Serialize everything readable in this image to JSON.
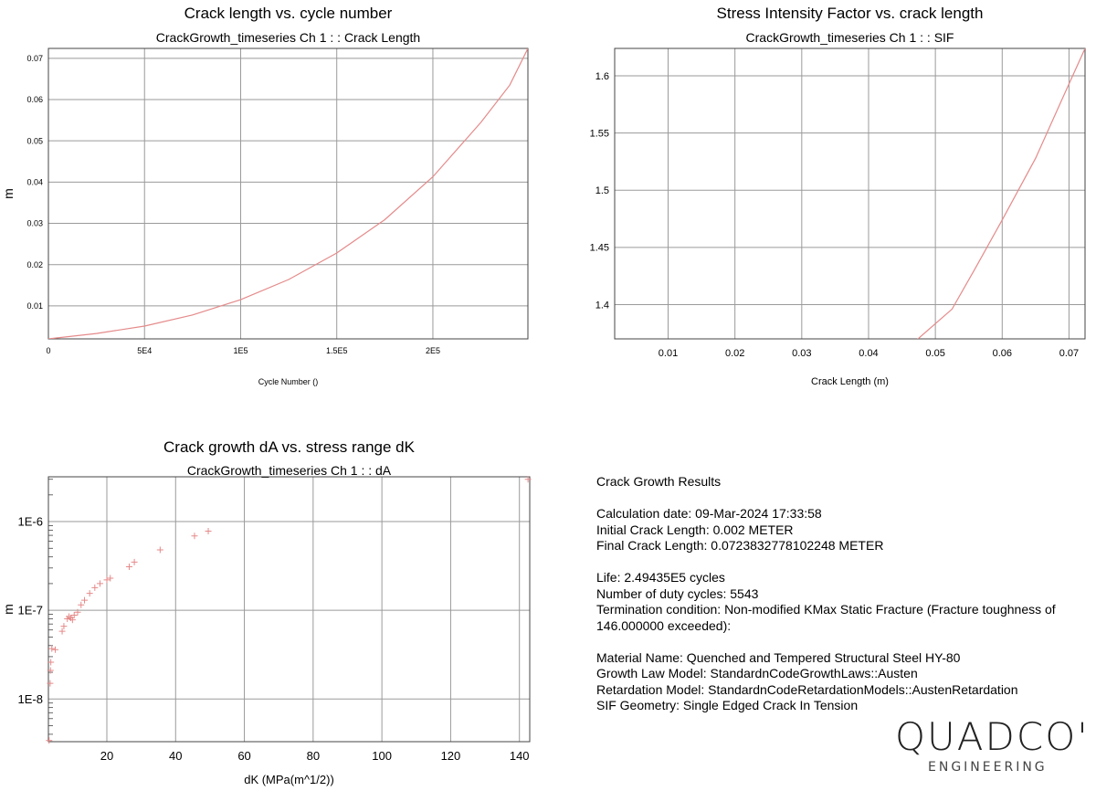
{
  "chart_data": [
    {
      "type": "line",
      "title": "Crack length vs. cycle number",
      "subtitle": "CrackGrowth_timeseries  Ch 1 :  : Crack Length",
      "xlabel": "Cycle Number ()",
      "ylabel": "m",
      "xlim": [
        0,
        249435
      ],
      "ylim": [
        0.002,
        0.0724
      ],
      "grid": true,
      "x_ticks": [
        {
          "v": 0,
          "label": "0"
        },
        {
          "v": 50000,
          "label": "5E4"
        },
        {
          "v": 100000,
          "label": "1E5"
        },
        {
          "v": 150000,
          "label": "1.5E5"
        },
        {
          "v": 200000,
          "label": "2E5"
        }
      ],
      "y_ticks": [
        {
          "v": 0.01,
          "label": "0.01"
        },
        {
          "v": 0.02,
          "label": "0.02"
        },
        {
          "v": 0.03,
          "label": "0.03"
        },
        {
          "v": 0.04,
          "label": "0.04"
        },
        {
          "v": 0.05,
          "label": "0.05"
        },
        {
          "v": 0.06,
          "label": "0.06"
        },
        {
          "v": 0.07,
          "label": "0.07"
        }
      ],
      "x": [
        0,
        25000,
        50000,
        75000,
        100000,
        125000,
        150000,
        175000,
        200000,
        225000,
        240000,
        249435
      ],
      "y": [
        0.002,
        0.0033,
        0.0051,
        0.0078,
        0.0115,
        0.0164,
        0.0228,
        0.0309,
        0.0413,
        0.0545,
        0.0635,
        0.0724
      ]
    },
    {
      "type": "line",
      "title": "Stress Intensity Factor vs. crack length",
      "subtitle": "CrackGrowth_timeseries  Ch 1 :  : SIF",
      "xlabel": "Crack Length (m)",
      "ylabel": "",
      "xlim": [
        0.002,
        0.0724
      ],
      "ylim": [
        1.37,
        1.624
      ],
      "grid": true,
      "x_ticks": [
        {
          "v": 0.01,
          "label": "0.01"
        },
        {
          "v": 0.02,
          "label": "0.02"
        },
        {
          "v": 0.03,
          "label": "0.03"
        },
        {
          "v": 0.04,
          "label": "0.04"
        },
        {
          "v": 0.05,
          "label": "0.05"
        },
        {
          "v": 0.06,
          "label": "0.06"
        },
        {
          "v": 0.07,
          "label": "0.07"
        }
      ],
      "y_ticks": [
        {
          "v": 1.4,
          "label": "1.4"
        },
        {
          "v": 1.45,
          "label": "1.45"
        },
        {
          "v": 1.5,
          "label": "1.5"
        },
        {
          "v": 1.55,
          "label": "1.55"
        },
        {
          "v": 1.6,
          "label": "1.6"
        }
      ],
      "x": [
        0.047,
        0.0525,
        0.056,
        0.06,
        0.065,
        0.069,
        0.0724
      ],
      "y": [
        1.368,
        1.396,
        1.432,
        1.474,
        1.528,
        1.58,
        1.624
      ]
    },
    {
      "type": "scatter",
      "title": "Crack growth dA vs. stress range dK",
      "subtitle": "CrackGrowth_timeseries  Ch 1 :  : dA",
      "xlabel": "dK (MPa(m^1/2))",
      "ylabel": "m",
      "yscale": "log",
      "xlim": [
        3,
        143
      ],
      "ylim": [
        3.3e-09,
        3.2e-06
      ],
      "grid": true,
      "x_ticks": [
        {
          "v": 20,
          "label": "20"
        },
        {
          "v": 40,
          "label": "40"
        },
        {
          "v": 60,
          "label": "60"
        },
        {
          "v": 80,
          "label": "80"
        },
        {
          "v": 100,
          "label": "100"
        },
        {
          "v": 120,
          "label": "120"
        },
        {
          "v": 140,
          "label": "140"
        }
      ],
      "y_ticks": [
        {
          "v": 1e-08,
          "label": "1E-8"
        },
        {
          "v": 1e-07,
          "label": "1E-7"
        },
        {
          "v": 1e-06,
          "label": "1E-6"
        }
      ],
      "x": [
        3.2,
        3.5,
        3.6,
        3.7,
        4.0,
        5.0,
        7.0,
        7.5,
        8.5,
        9.0,
        9.5,
        10.0,
        10.5,
        11.5,
        12.5,
        13.5,
        15.0,
        16.5,
        18.0,
        20.0,
        21.0,
        26.5,
        28.0,
        35.5,
        45.5,
        49.5,
        142.5
      ],
      "y": [
        3.4e-09,
        1.5e-08,
        2.1e-08,
        2.6e-08,
        3.7e-08,
        3.6e-08,
        5.8e-08,
        6.6e-08,
        8e-08,
        8.5e-08,
        8.2e-08,
        7.8e-08,
        8.8e-08,
        9.5e-08,
        1.15e-07,
        1.3e-07,
        1.55e-07,
        1.8e-07,
        2e-07,
        2.2e-07,
        2.3e-07,
        3.1e-07,
        3.5e-07,
        4.8e-07,
        6.9e-07,
        7.8e-07,
        3e-06
      ]
    }
  ],
  "colors": {
    "series": "#e58a8a",
    "grid": "#9a9a9a",
    "axis": "#444444"
  },
  "results": {
    "heading": "Crack Growth Results",
    "calc_date": "Calculation date: 09-Mar-2024 17:33:58",
    "initial_length": "Initial Crack Length: 0.002 METER",
    "final_length": "Final Crack Length: 0.0723832778102248 METER",
    "life": "Life: 2.49435E5 cycles",
    "duty_cycles": "Number of duty cycles: 5543",
    "termination_1": "Termination condition: Non-modified KMax Static Fracture (Fracture toughness of",
    "termination_2": "146.000000 exceeded):",
    "material": "Material Name: Quenched and Tempered Structural Steel HY-80",
    "growth_law": "Growth Law Model: StandardnCodeGrowthLaws::Austen",
    "retardation": "Retardation Model: StandardnCodeRetardationModels::AustenRetardation",
    "geometry": "SIF Geometry: Single Edged Crack In Tension"
  },
  "logo": {
    "word": "QUADCO",
    "mark": "'",
    "sub": "ENGINEERING"
  }
}
